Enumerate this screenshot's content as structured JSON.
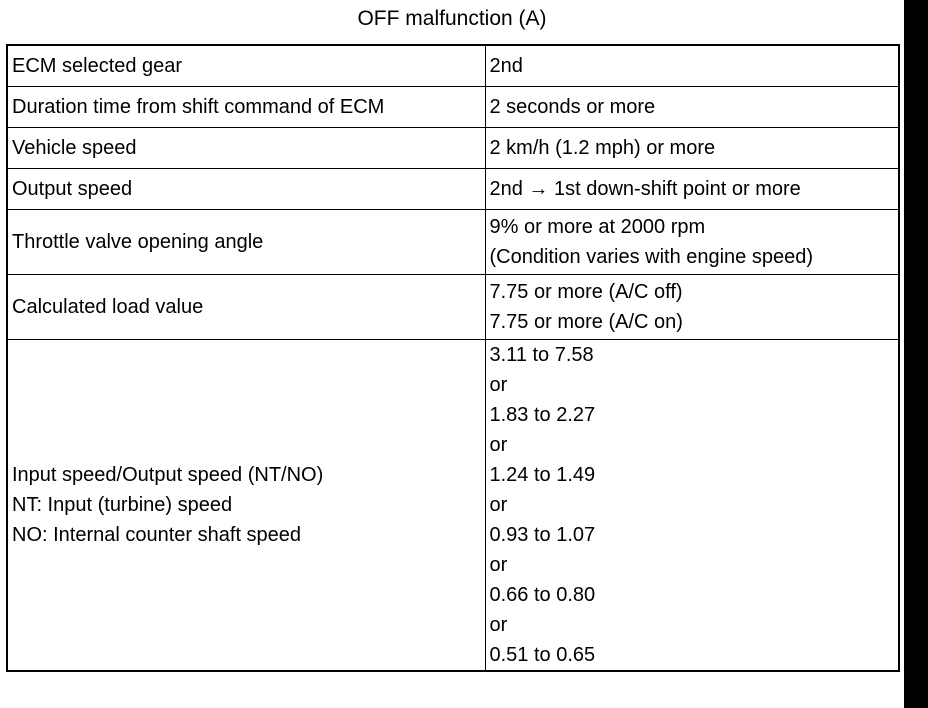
{
  "title": "OFF malfunction (A)",
  "rows": [
    {
      "parameter": [
        "ECM selected gear"
      ],
      "condition": [
        "2nd"
      ]
    },
    {
      "parameter": [
        "Duration time from shift command of ECM"
      ],
      "condition": [
        "2 seconds or more"
      ]
    },
    {
      "parameter": [
        "Vehicle speed"
      ],
      "condition": [
        "2 km/h (1.2 mph) or more"
      ]
    },
    {
      "parameter": [
        "Output speed"
      ],
      "condition": [
        "2nd → 1st down-shift point or more"
      ]
    },
    {
      "parameter": [
        "Throttle valve opening angle"
      ],
      "condition": [
        "9% or more at 2000 rpm",
        "(Condition varies with engine speed)"
      ]
    },
    {
      "parameter": [
        "Calculated load value"
      ],
      "condition": [
        "7.75 or more (A/C off)",
        "7.75 or more (A/C on)"
      ]
    },
    {
      "parameter": [
        "Input speed/Output speed (NT/NO)",
        "NT: Input (turbine) speed",
        "NO: Internal counter shaft speed"
      ],
      "condition": [
        "3.11 to 7.58",
        "or",
        "1.83 to 2.27",
        "or",
        "1.24 to 1.49",
        "or",
        "0.93 to 1.07",
        "or",
        "0.66 to 0.80",
        "or",
        "0.51 to 0.65"
      ]
    }
  ]
}
